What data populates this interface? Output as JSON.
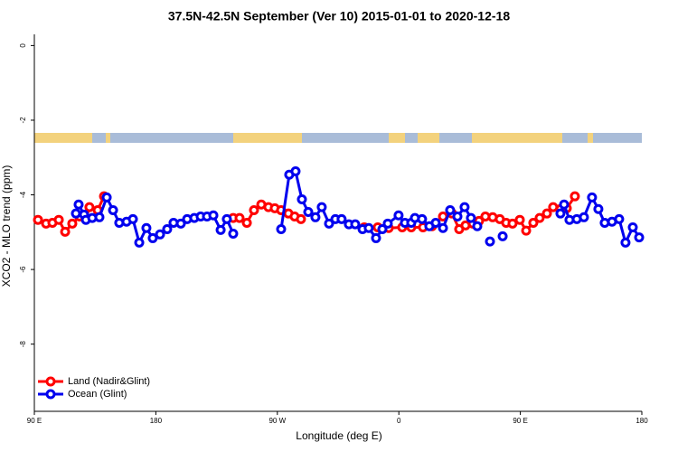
{
  "chart_data": {
    "type": "line",
    "title": "37.5N-42.5N September (Ver 10)   2015-01-01 to 2020-12-18",
    "x_label": "Longitude (deg E)",
    "y_label": "XCO2 - MLO trend (ppm)",
    "xlim": [
      90,
      540
    ],
    "ylim": [
      -9.8,
      0.3
    ],
    "xticks": [
      {
        "value": 90,
        "label": "90 E"
      },
      180,
      {
        "value": 270,
        "label": "90 W"
      },
      {
        "value": 360,
        "label": "0"
      },
      {
        "value": 450,
        "label": "90 E"
      },
      180
    ],
    "yticks": [
      0,
      -2,
      -4,
      -6,
      -8
    ],
    "legend": "bottom-left",
    "series": [
      {
        "name": "Land (Nadir&Glint)",
        "color": "#ff0000",
        "x": [
          92.7,
          98.7,
          103.4,
          108.1,
          112.8,
          118.1,
          123.5,
          128.2,
          130.8,
          136.9,
          141.6,
          null,
          237.3,
          242.0,
          247.4,
          252.7,
          258.1,
          263.4,
          268.1,
          272.8,
          278.2,
          282.8,
          287.5,
          null,
          334.4,
          344.4,
          352.5,
          362.5,
          369.2,
          377.9,
          384.6,
          392.7,
          399.4,
          404.7,
          409.4,
          414.8,
          419.4,
          424.1,
          429.5,
          434.8,
          439.5,
          444.2,
          449.6,
          454.3,
          459.6,
          464.3,
          469.7,
          474.3,
          479.7,
          484.4,
          490.4
        ],
        "values": [
          -4.67,
          -4.77,
          -4.75,
          -4.67,
          -4.99,
          -4.77,
          -4.58,
          -4.65,
          -4.33,
          -4.41,
          -4.04,
          null,
          -4.62,
          -4.62,
          -4.75,
          -4.41,
          -4.26,
          -4.33,
          -4.36,
          -4.41,
          -4.5,
          -4.58,
          -4.65,
          null,
          -4.87,
          -4.87,
          -4.89,
          -4.87,
          -4.87,
          -4.87,
          -4.84,
          -4.58,
          -4.5,
          -4.92,
          -4.82,
          -4.77,
          -4.7,
          -4.58,
          -4.6,
          -4.65,
          -4.75,
          -4.77,
          -4.67,
          -4.96,
          -4.75,
          -4.62,
          -4.5,
          -4.33,
          -4.38,
          -4.36,
          -4.04
        ]
      },
      {
        "name": "Ocean (Glint)",
        "color": "#0000ee",
        "x": [
          120.8,
          122.8,
          126.8,
          128.2,
          132.9,
          138.2,
          143.6,
          148.3,
          152.9,
          158.3,
          163.0,
          167.7,
          173.0,
          177.7,
          183.1,
          188.4,
          193.1,
          198.5,
          203.2,
          208.5,
          213.2,
          217.9,
          222.6,
          228.0,
          232.6,
          237.3,
          null,
          272.8,
          278.8,
          283.5,
          288.2,
          292.9,
          298.2,
          302.9,
          308.3,
          313.0,
          317.6,
          323.0,
          327.7,
          333.1,
          337.7,
          343.1,
          347.8,
          351.8,
          359.8,
          364.5,
          369.2,
          371.9,
          377.2,
          382.6,
          387.3,
          392.7,
          398.0,
          403.4,
          408.7,
          413.4,
          418.1,
          null,
          427.5,
          null,
          436.9,
          null,
          479.7,
          482.4,
          486.4,
          491.8,
          497.1,
          503.1,
          507.8,
          512.5,
          517.9,
          523.2,
          527.9,
          533.3,
          538.0
        ],
        "values": [
          -4.5,
          -4.26,
          -4.53,
          -4.67,
          -4.62,
          -4.6,
          -4.07,
          -4.41,
          -4.75,
          -4.72,
          -4.65,
          -5.28,
          -4.89,
          -5.16,
          -5.06,
          -4.92,
          -4.75,
          -4.77,
          -4.65,
          -4.62,
          -4.58,
          -4.58,
          -4.55,
          -4.94,
          -4.65,
          -5.04,
          null,
          -4.92,
          -3.46,
          -3.37,
          -4.12,
          -4.46,
          -4.6,
          -4.33,
          -4.77,
          -4.65,
          -4.65,
          -4.79,
          -4.79,
          -4.92,
          -4.89,
          -5.16,
          -4.92,
          -4.77,
          -4.55,
          -4.75,
          -4.75,
          -4.62,
          -4.65,
          -4.84,
          -4.75,
          -4.89,
          -4.41,
          -4.58,
          -4.33,
          -4.62,
          -4.84,
          null,
          -5.25,
          null,
          -5.11,
          null,
          -4.5,
          -4.26,
          -4.67,
          -4.65,
          -4.6,
          -4.07,
          -4.38,
          -4.75,
          -4.72,
          -4.65,
          -5.28,
          -4.87,
          -5.14
        ]
      }
    ]
  }
}
